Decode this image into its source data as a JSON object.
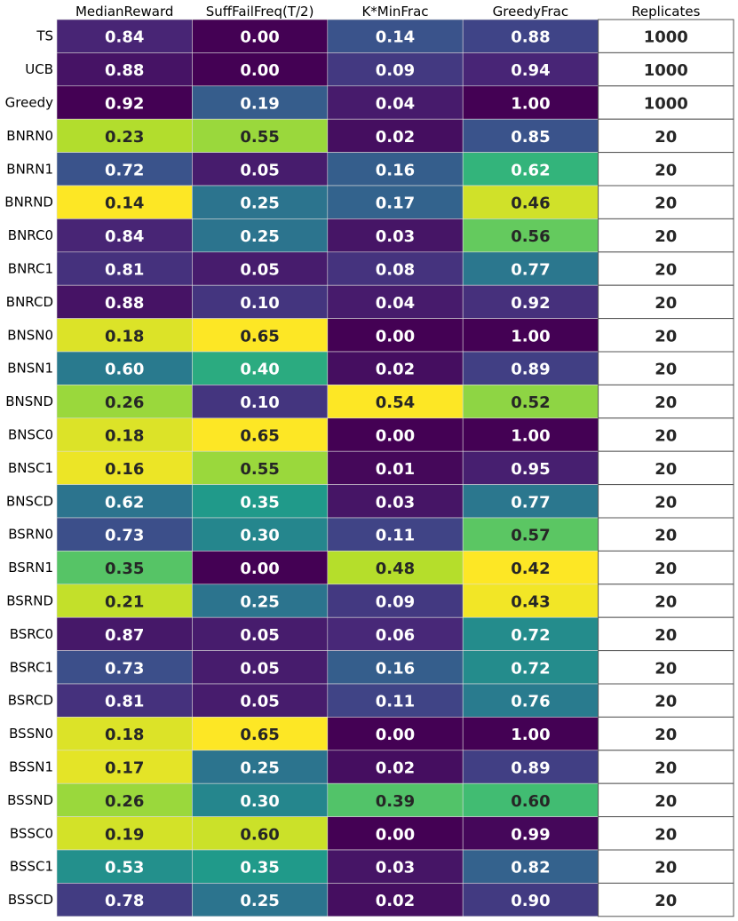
{
  "chart_data": {
    "type": "heatmap",
    "title": "",
    "xlabel": "",
    "ylabel": "",
    "columns": [
      "MedianReward",
      "SuffFailFreq(T/2)",
      "K*MinFrac",
      "GreedyFrac",
      "Replicates"
    ],
    "rows": [
      "TS",
      "UCB",
      "Greedy",
      "BNRN0",
      "BNRN1",
      "BNRND",
      "BNRC0",
      "BNRC1",
      "BNRCD",
      "BNSN0",
      "BNSN1",
      "BNSND",
      "BNSC0",
      "BNSC1",
      "BNSCD",
      "BSRN0",
      "BSRN1",
      "BSRND",
      "BSRC0",
      "BSRC1",
      "BSRCD",
      "BSSN0",
      "BSSN1",
      "BSSND",
      "BSSC0",
      "BSSC1",
      "BSSCD"
    ],
    "values": [
      [
        "0.84",
        "0.00",
        "0.14",
        "0.88",
        "1000"
      ],
      [
        "0.88",
        "0.00",
        "0.09",
        "0.94",
        "1000"
      ],
      [
        "0.92",
        "0.19",
        "0.04",
        "1.00",
        "1000"
      ],
      [
        "0.23",
        "0.55",
        "0.02",
        "0.85",
        "20"
      ],
      [
        "0.72",
        "0.05",
        "0.16",
        "0.62",
        "20"
      ],
      [
        "0.14",
        "0.25",
        "0.17",
        "0.46",
        "20"
      ],
      [
        "0.84",
        "0.25",
        "0.03",
        "0.56",
        "20"
      ],
      [
        "0.81",
        "0.05",
        "0.08",
        "0.77",
        "20"
      ],
      [
        "0.88",
        "0.10",
        "0.04",
        "0.92",
        "20"
      ],
      [
        "0.18",
        "0.65",
        "0.00",
        "1.00",
        "20"
      ],
      [
        "0.60",
        "0.40",
        "0.02",
        "0.89",
        "20"
      ],
      [
        "0.26",
        "0.10",
        "0.54",
        "0.52",
        "20"
      ],
      [
        "0.18",
        "0.65",
        "0.00",
        "1.00",
        "20"
      ],
      [
        "0.16",
        "0.55",
        "0.01",
        "0.95",
        "20"
      ],
      [
        "0.62",
        "0.35",
        "0.03",
        "0.77",
        "20"
      ],
      [
        "0.73",
        "0.30",
        "0.11",
        "0.57",
        "20"
      ],
      [
        "0.35",
        "0.00",
        "0.48",
        "0.42",
        "20"
      ],
      [
        "0.21",
        "0.25",
        "0.09",
        "0.43",
        "20"
      ],
      [
        "0.87",
        "0.05",
        "0.06",
        "0.72",
        "20"
      ],
      [
        "0.73",
        "0.05",
        "0.16",
        "0.72",
        "20"
      ],
      [
        "0.81",
        "0.05",
        "0.11",
        "0.76",
        "20"
      ],
      [
        "0.18",
        "0.65",
        "0.00",
        "1.00",
        "20"
      ],
      [
        "0.17",
        "0.25",
        "0.02",
        "0.89",
        "20"
      ],
      [
        "0.26",
        "0.30",
        "0.39",
        "0.60",
        "20"
      ],
      [
        "0.19",
        "0.60",
        "0.00",
        "0.99",
        "20"
      ],
      [
        "0.53",
        "0.35",
        "0.03",
        "0.82",
        "20"
      ],
      [
        "0.78",
        "0.25",
        "0.02",
        "0.90",
        "20"
      ]
    ],
    "colormap": "viridis",
    "colormap_stops": [
      "#440154",
      "#482878",
      "#3e4989",
      "#31688e",
      "#26828e",
      "#1f9e89",
      "#35b779",
      "#6ece58",
      "#b5de2b",
      "#fde725"
    ],
    "colormap_reversed": [
      true,
      false,
      false,
      true
    ],
    "unshaded_column_fill": "#ffffff",
    "grid_line_color": "#dddddd",
    "text_color_dark": "#262626",
    "text_color_light": "#ffffff"
  }
}
